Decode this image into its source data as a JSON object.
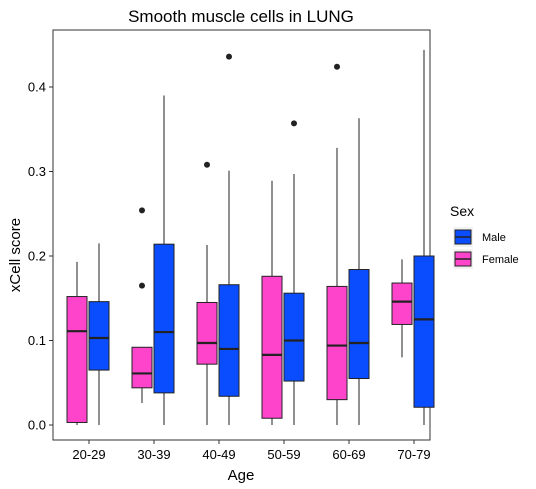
{
  "chart_data": {
    "type": "boxplot",
    "title": "Smooth muscle cells in LUNG",
    "xlabel": "Age",
    "ylabel": "xCell score",
    "ylim": [
      0,
      0.45
    ],
    "yticks": [
      "0.0",
      "0.1",
      "0.2",
      "0.3",
      "0.4"
    ],
    "ytick_values": [
      0,
      0.1,
      0.2,
      0.3,
      0.4
    ],
    "categories": [
      "20-29",
      "30-39",
      "40-49",
      "50-59",
      "60-69",
      "70-79"
    ],
    "grid": false,
    "legend": {
      "title": "Sex",
      "position": "right",
      "entries": [
        {
          "label": "Male",
          "color": "#0a4dff"
        },
        {
          "label": "Female",
          "color": "#ff44cc"
        }
      ]
    },
    "series": [
      {
        "name": "Female",
        "color": "#ff44cc",
        "boxes": [
          {
            "min": 0.0,
            "q1": 0.003,
            "median": 0.111,
            "q3": 0.152,
            "max": 0.193,
            "outliers": []
          },
          {
            "min": 0.026,
            "q1": 0.044,
            "median": 0.061,
            "q3": 0.092,
            "max": 0.092,
            "outliers": [
              0.165,
              0.254
            ]
          },
          {
            "min": 0.0,
            "q1": 0.072,
            "median": 0.097,
            "q3": 0.145,
            "max": 0.213,
            "outliers": [
              0.308
            ]
          },
          {
            "min": 0.0,
            "q1": 0.008,
            "median": 0.083,
            "q3": 0.176,
            "max": 0.289,
            "outliers": []
          },
          {
            "min": 0.0,
            "q1": 0.03,
            "median": 0.094,
            "q3": 0.164,
            "max": 0.328,
            "outliers": [
              0.424
            ]
          },
          {
            "min": 0.08,
            "q1": 0.119,
            "median": 0.146,
            "q3": 0.168,
            "max": 0.196,
            "outliers": []
          }
        ]
      },
      {
        "name": "Male",
        "color": "#0a4dff",
        "boxes": [
          {
            "min": 0.0,
            "q1": 0.065,
            "median": 0.103,
            "q3": 0.146,
            "max": 0.215,
            "outliers": []
          },
          {
            "min": 0.0,
            "q1": 0.038,
            "median": 0.11,
            "q3": 0.214,
            "max": 0.39,
            "outliers": []
          },
          {
            "min": 0.0,
            "q1": 0.034,
            "median": 0.09,
            "q3": 0.166,
            "max": 0.301,
            "outliers": [
              0.436
            ]
          },
          {
            "min": 0.0,
            "q1": 0.052,
            "median": 0.1,
            "q3": 0.156,
            "max": 0.297,
            "outliers": [
              0.357
            ]
          },
          {
            "min": 0.0,
            "q1": 0.055,
            "median": 0.097,
            "q3": 0.184,
            "max": 0.363,
            "outliers": []
          },
          {
            "min": 0.0,
            "q1": 0.021,
            "median": 0.125,
            "q3": 0.2,
            "max": 0.444,
            "outliers": []
          }
        ]
      }
    ]
  }
}
